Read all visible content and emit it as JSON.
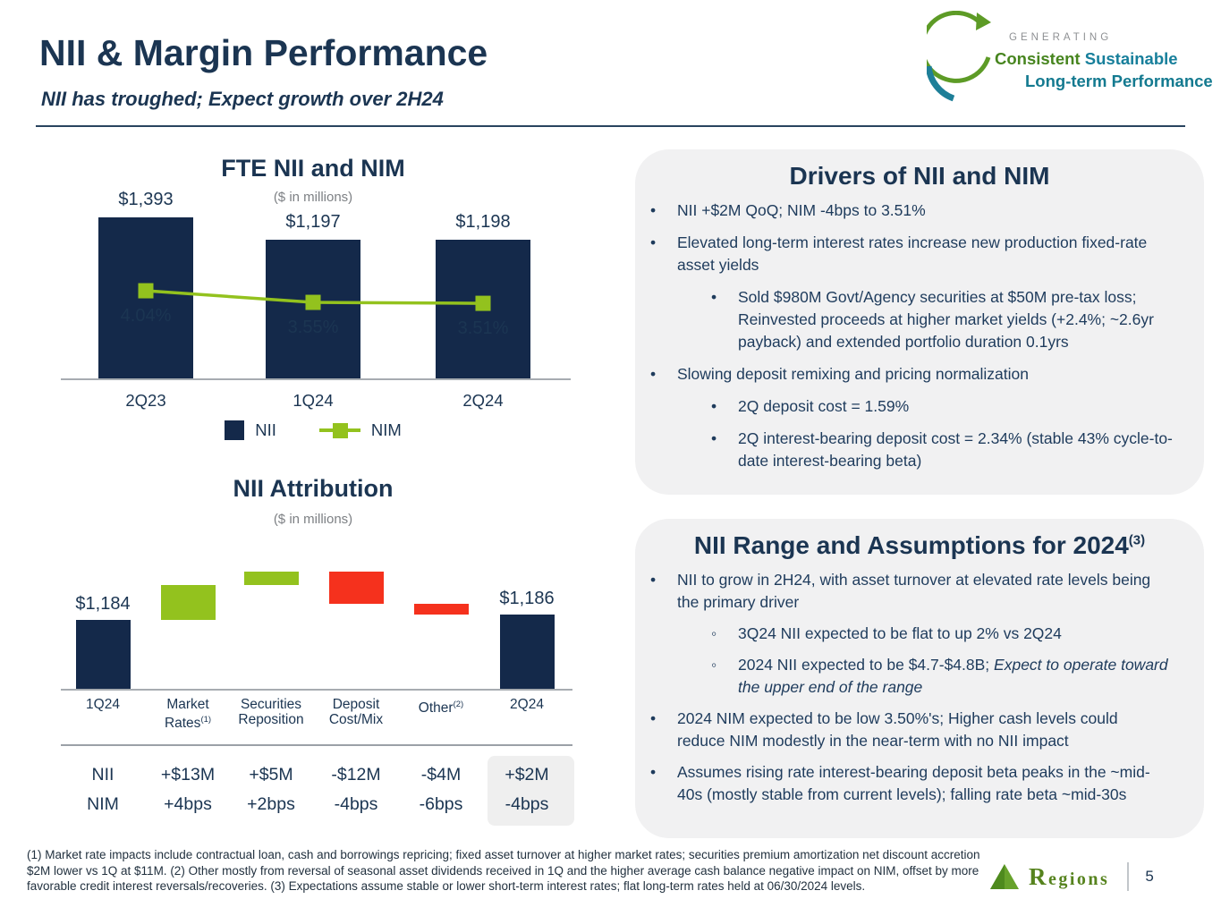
{
  "header": {
    "title": "NII & Margin Performance",
    "subtitle": "NII has troughed; Expect growth over 2H24"
  },
  "brand": {
    "tagline_top": "GENERATING",
    "tagline_green": "Consistent",
    "tagline_teal": "Sustainable",
    "tagline_bottom": "Long-term Performance",
    "colors": {
      "green": "#47851F",
      "teal": "#177F9B",
      "gray": "#8E9093"
    }
  },
  "chart_data": [
    {
      "type": "bar",
      "title": "FTE NII and NIM",
      "subtitle": "($ in millions)",
      "categories": [
        "2Q23",
        "1Q24",
        "2Q24"
      ],
      "series": [
        {
          "name": "NII",
          "type": "bar",
          "values": [
            1393,
            1197,
            1198
          ],
          "labels": [
            "$1,393",
            "$1,197",
            "$1,198"
          ],
          "color": "#14294A"
        },
        {
          "name": "NIM",
          "type": "line",
          "values": [
            4.04,
            3.55,
            3.51
          ],
          "labels": [
            "4.04%",
            "3.55%",
            "3.51%"
          ],
          "color": "#93C21E"
        }
      ],
      "legend_position": "bottom",
      "grid": false
    },
    {
      "type": "waterfall",
      "title": "NII Attribution",
      "subtitle": "($ in millions)",
      "columns": [
        {
          "lines": [
            "1Q24"
          ],
          "kind": "total",
          "value": 1184,
          "label": "$1,184"
        },
        {
          "lines": [
            "Market",
            "Rates"
          ],
          "sup": "(1)",
          "kind": "delta",
          "value": 13
        },
        {
          "lines": [
            "Securities",
            "Reposition"
          ],
          "kind": "delta",
          "value": 5
        },
        {
          "lines": [
            "Deposit",
            "Cost/Mix"
          ],
          "kind": "delta",
          "value": -12
        },
        {
          "lines": [
            "Other"
          ],
          "sup": "(2)",
          "kind": "delta",
          "value": -4
        },
        {
          "lines": [
            "2Q24"
          ],
          "kind": "total",
          "value": 1186,
          "label": "$1,186"
        }
      ],
      "colors": {
        "total": "#14294A",
        "positive": "#93C21E",
        "negative": "#F5311D"
      },
      "table": {
        "rows": [
          {
            "header": "NII",
            "values": [
              "+$13M",
              "+$5M",
              "-$12M",
              "-$4M",
              "+$2M"
            ]
          },
          {
            "header": "NIM",
            "values": [
              "+4bps",
              "+2bps",
              "-4bps",
              "-6bps",
              "-4bps"
            ]
          }
        ],
        "highlight_last_column": true
      }
    }
  ],
  "drivers": {
    "title": "Drivers of NII and NIM",
    "bullets": [
      {
        "level": 1,
        "text": "NII +$2M QoQ; NIM -4bps to 3.51%"
      },
      {
        "level": 1,
        "text": "Elevated long-term interest rates increase new production fixed-rate asset yields"
      },
      {
        "level": 2,
        "text": "Sold $980M Govt/Agency securities at $50M pre-tax loss; Reinvested proceeds at higher market yields (+2.4%; ~2.6yr payback) and extended portfolio duration 0.1yrs"
      },
      {
        "level": 1,
        "text": "Slowing deposit remixing and pricing normalization"
      },
      {
        "level": 2,
        "text": "2Q deposit cost = 1.59%"
      },
      {
        "level": 2,
        "text": "2Q interest-bearing deposit cost = 2.34% (stable 43% cycle-to-date interest-bearing beta)"
      }
    ]
  },
  "range": {
    "title": "NII Range and Assumptions for 2024",
    "title_sup": "(3)",
    "bullets": [
      {
        "level": 1,
        "text": "NII to grow in 2H24, with asset turnover at elevated rate levels being the primary driver"
      },
      {
        "level": 2,
        "style": "circle",
        "text": "3Q24 NII expected to be flat to up 2% vs 2Q24"
      },
      {
        "level": 2,
        "style": "circle",
        "text": "2024 NII expected to be $4.7-$4.8B; ",
        "italic": "Expect to operate toward the upper end of the range"
      },
      {
        "level": 1,
        "text": "2024 NIM expected to be low 3.50%'s; Higher cash levels could reduce NIM modestly in the near-term with no NII impact"
      },
      {
        "level": 1,
        "text": "Assumes rising rate interest-bearing deposit beta peaks in the ~mid-40s (mostly stable from current levels); falling rate beta ~mid-30s"
      }
    ]
  },
  "footnotes": "(1) Market rate impacts include contractual loan, cash and borrowings repricing; fixed asset turnover at higher market rates; securities premium amortization net discount accretion $2M lower vs 1Q at $11M.  (2) Other mostly from reversal of seasonal asset dividends received in 1Q and the higher average cash balance negative impact on NIM, offset by more favorable credit interest reversals/recoveries.  (3) Expectations assume stable or lower short-term interest rates; flat long-term rates held at  06/30/2024 levels.",
  "footer": {
    "brand_name": "Regions",
    "page_number": "5"
  }
}
